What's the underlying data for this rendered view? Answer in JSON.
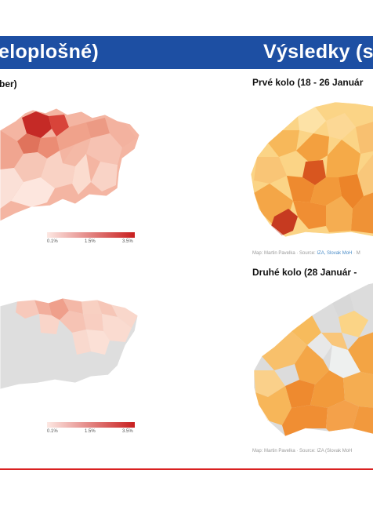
{
  "header": {
    "left_title": "eloplošné)",
    "right_title": "Výsledky (s",
    "band_color": "#1d4fa3"
  },
  "left_panel": {
    "top_subtitle": "ber)",
    "legend_colors": [
      "#fde8e3",
      "#c81e1e"
    ],
    "top_legend": {
      "ticks": [
        "0.1%",
        "1.5%",
        "3.5%"
      ]
    },
    "bottom_legend": {
      "ticks": [
        "0.1%",
        "1.5%",
        "3.5%"
      ]
    }
  },
  "right_panel": {
    "round1_title": "Prvé kolo (18 - 26 Január",
    "round1_credit": {
      "prefix": "Map: Martin Pavelka · Source: ",
      "sources": "IZA, Slovak MoH",
      "suffix": " · M"
    },
    "round2_title": "Druhé kolo (28 Január -",
    "round2_credit": {
      "text": "Map: Martin Pavelka · Source: IZA (Slovak MoH"
    },
    "map_colors": [
      "#fbd486",
      "#f6a945",
      "#ee8a2f",
      "#c63a20",
      "#dcdcdc"
    ]
  },
  "footer": {
    "rule_color": "#d92020"
  }
}
